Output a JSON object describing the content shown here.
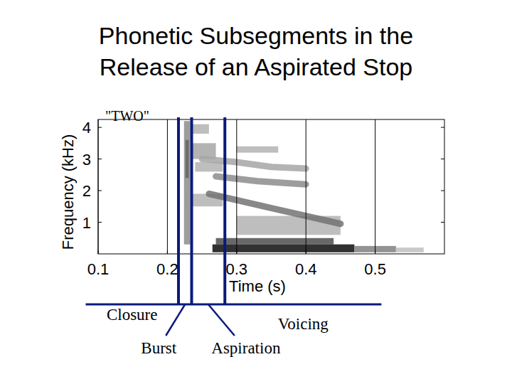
{
  "chart_data": {
    "type": "spectrogram",
    "title_lines": [
      "Phonetic Subsegments in the",
      "Release of an Aspirated Stop"
    ],
    "label": "\"TWO\"",
    "x_label": "Time (s)",
    "y_label": "Frequency (kHz)",
    "xlim": [
      0.1,
      0.6
    ],
    "ylim": [
      0,
      4.25
    ],
    "xticks": [
      0.1,
      0.2,
      0.3,
      0.4,
      0.5
    ],
    "yticks": [
      1,
      2,
      3,
      4
    ],
    "grid": true,
    "cells": [
      {
        "t": [
          0.224,
          0.233
        ],
        "f": [
          0.3,
          4.2
        ],
        "level": 0.45
      },
      {
        "t": [
          0.226,
          0.231
        ],
        "f": [
          2.4,
          3.6
        ],
        "level": 0.6
      },
      {
        "t": [
          0.235,
          0.27
        ],
        "f": [
          3.0,
          3.5
        ],
        "level": 0.35
      },
      {
        "t": [
          0.24,
          0.28
        ],
        "f": [
          2.6,
          2.9
        ],
        "level": 0.3
      },
      {
        "t": [
          0.235,
          0.26
        ],
        "f": [
          3.8,
          4.1
        ],
        "level": 0.3
      },
      {
        "t": [
          0.235,
          0.28
        ],
        "f": [
          1.5,
          1.9
        ],
        "level": 0.3
      },
      {
        "t": [
          0.3,
          0.36
        ],
        "f": [
          3.2,
          3.4
        ],
        "level": 0.3
      },
      {
        "t": [
          0.3,
          0.45
        ],
        "f": [
          0.6,
          1.2
        ],
        "level": 0.3
      },
      {
        "t": [
          0.27,
          0.44
        ],
        "f": [
          0.3,
          0.5
        ],
        "level": 0.7
      },
      {
        "t": [
          0.265,
          0.47
        ],
        "f": [
          0.05,
          0.3
        ],
        "level": 0.95
      },
      {
        "t": [
          0.47,
          0.53
        ],
        "f": [
          0.05,
          0.25
        ],
        "level": 0.5
      },
      {
        "t": [
          0.53,
          0.57
        ],
        "f": [
          0.05,
          0.2
        ],
        "level": 0.25
      }
    ],
    "tracks": [
      {
        "t": [
          0.26,
          0.3,
          0.35,
          0.4,
          0.45
        ],
        "f": [
          1.9,
          1.7,
          1.45,
          1.2,
          0.95
        ],
        "level": 0.55
      },
      {
        "t": [
          0.27,
          0.33,
          0.4
        ],
        "f": [
          2.45,
          2.3,
          2.2
        ],
        "level": 0.45
      },
      {
        "t": [
          0.25,
          0.3,
          0.35,
          0.4
        ],
        "f": [
          3.0,
          2.9,
          2.75,
          2.7
        ],
        "level": 0.35
      }
    ],
    "segments": [
      {
        "label": "Closure",
        "start": 0.082,
        "end": 0.216
      },
      {
        "label": "Burst",
        "start": 0.216,
        "end": 0.235
      },
      {
        "label": "Aspiration",
        "start": 0.235,
        "end": 0.283
      },
      {
        "label": "Voicing",
        "start": 0.283,
        "end": 0.509
      }
    ]
  }
}
